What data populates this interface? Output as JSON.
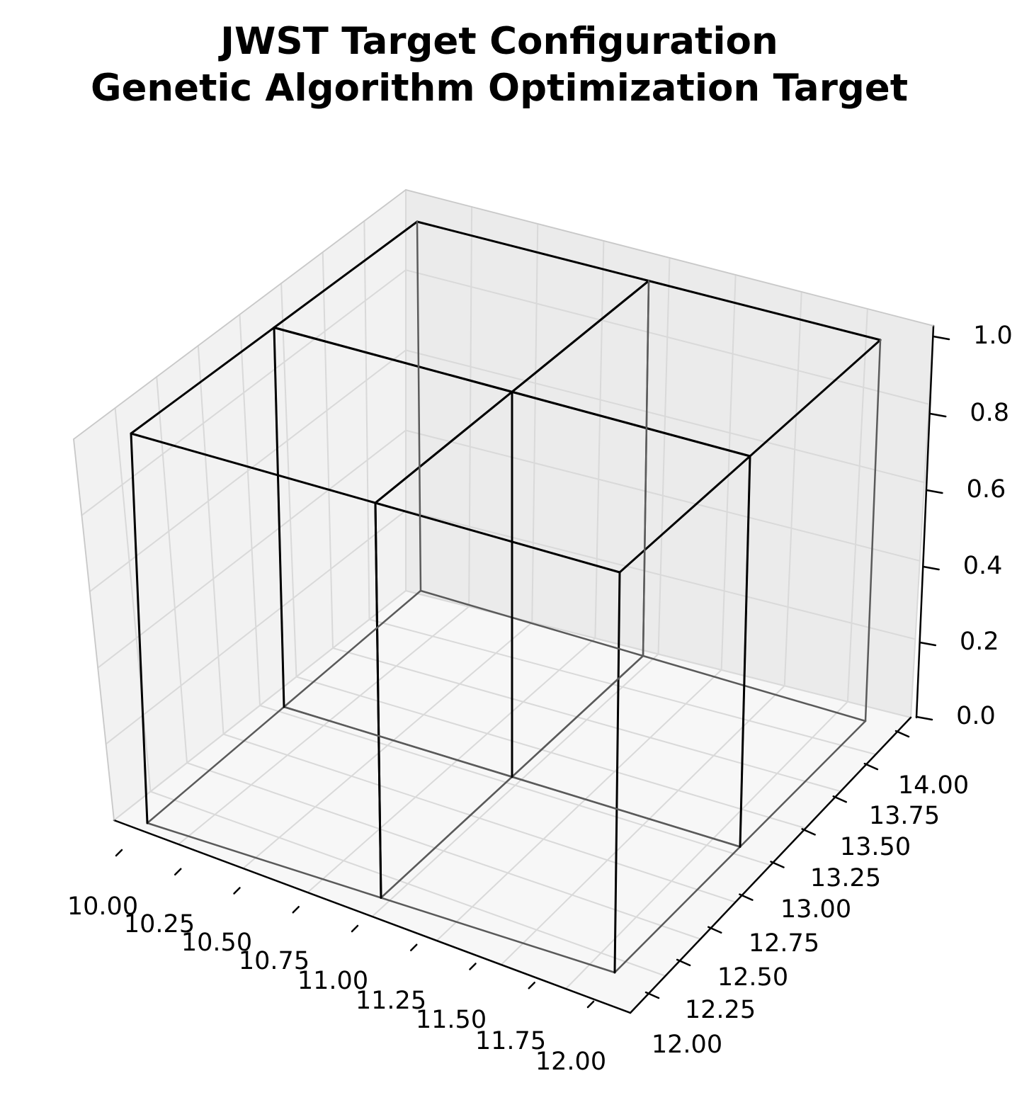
{
  "chart_data": {
    "type": "3d-wireframe",
    "title": "JWST Target Configuration",
    "subtitle": "Genetic Algorithm Optimization Target",
    "xlabel": "",
    "ylabel": "",
    "zlabel": "",
    "xlim": [
      10.0,
      12.0
    ],
    "ylim": [
      12.0,
      14.0
    ],
    "zlim": [
      0.0,
      1.0
    ],
    "x_ticks": [
      "10.00",
      "10.25",
      "10.50",
      "10.75",
      "11.00",
      "11.25",
      "11.50",
      "11.75",
      "12.00"
    ],
    "y_ticks": [
      "12.00",
      "12.25",
      "12.50",
      "12.75",
      "13.00",
      "13.25",
      "13.50",
      "13.75",
      "14.00"
    ],
    "z_ticks": [
      "0.0",
      "0.2",
      "0.4",
      "0.6",
      "0.8",
      "1.0"
    ],
    "boxes": [
      {
        "x": [
          10.0,
          11.0
        ],
        "y": [
          12.0,
          13.0
        ],
        "z": [
          0.0,
          1.0
        ]
      },
      {
        "x": [
          11.0,
          12.0
        ],
        "y": [
          12.0,
          13.0
        ],
        "z": [
          0.0,
          1.0
        ]
      },
      {
        "x": [
          10.0,
          11.0
        ],
        "y": [
          13.0,
          14.0
        ],
        "z": [
          0.0,
          1.0
        ]
      },
      {
        "x": [
          11.0,
          12.0
        ],
        "y": [
          13.0,
          14.0
        ],
        "z": [
          0.0,
          1.0
        ]
      }
    ],
    "grid": true,
    "colors": {
      "pane_left": "#f2f2f2",
      "pane_back": "#ebebeb",
      "pane_floor": "#f7f7f7",
      "grid": "#d9d9d9",
      "edge": "#000000"
    }
  }
}
